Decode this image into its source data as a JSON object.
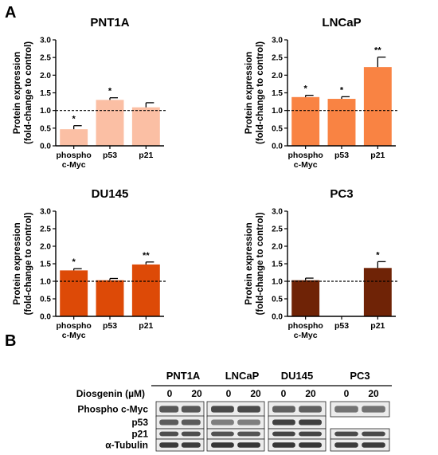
{
  "panels": {
    "a": "A",
    "b": "B"
  },
  "chart_data": [
    {
      "type": "bar",
      "title": "PNT1A",
      "ylabel_lines": [
        "Protein expression",
        "(fold-change to control)"
      ],
      "categories": [
        [
          "phospho",
          "c-Myc"
        ],
        [
          "p53"
        ],
        [
          "p21"
        ]
      ],
      "values": [
        0.47,
        1.3,
        1.09
      ],
      "errors": [
        0.1,
        0.06,
        0.13
      ],
      "significance": [
        "*",
        "*",
        ""
      ],
      "ylim": [
        0,
        3.0
      ],
      "yticks": [
        "0.0",
        "0.5",
        "1.0",
        "1.5",
        "2.0",
        "2.5",
        "3.0"
      ],
      "reference_line": 1.0,
      "color": "#fbbfa4",
      "grid": false
    },
    {
      "type": "bar",
      "title": "LNCaP",
      "ylabel_lines": [
        "Protein expression",
        "(fold-change to control)"
      ],
      "categories": [
        [
          "phospho",
          "c-Myc"
        ],
        [
          "p53"
        ],
        [
          "p21"
        ]
      ],
      "values": [
        1.38,
        1.33,
        2.23
      ],
      "errors": [
        0.05,
        0.06,
        0.28
      ],
      "significance": [
        "*",
        "*",
        "**"
      ],
      "ylim": [
        0,
        3.0
      ],
      "yticks": [
        "0.0",
        "0.5",
        "1.0",
        "1.5",
        "2.0",
        "2.5",
        "3.0"
      ],
      "reference_line": 1.0,
      "color": "#f98343",
      "grid": false
    },
    {
      "type": "bar",
      "title": "DU145",
      "ylabel_lines": [
        "Protein expression",
        "(fold-change to control)"
      ],
      "categories": [
        [
          "phospho",
          "c-Myc"
        ],
        [
          "p53"
        ],
        [
          "p21"
        ]
      ],
      "values": [
        1.31,
        1.03,
        1.48
      ],
      "errors": [
        0.05,
        0.05,
        0.07
      ],
      "significance": [
        "*",
        "",
        "**"
      ],
      "ylim": [
        0,
        3.0
      ],
      "yticks": [
        "0.0",
        "0.5",
        "1.0",
        "1.5",
        "2.0",
        "2.5",
        "3.0"
      ],
      "reference_line": 1.0,
      "color": "#dd4a07",
      "grid": false
    },
    {
      "type": "bar",
      "title": "PC3",
      "ylabel_lines": [
        "Protein expression",
        "(fold-change to control)"
      ],
      "categories": [
        [
          "phospho",
          "c-Myc"
        ],
        [
          "p53"
        ],
        [
          "p21"
        ]
      ],
      "values": [
        1.03,
        null,
        1.38
      ],
      "errors": [
        0.06,
        null,
        0.18
      ],
      "significance": [
        "",
        "",
        "*"
      ],
      "ylim": [
        0,
        3.0
      ],
      "yticks": [
        "0.0",
        "0.5",
        "1.0",
        "1.5",
        "2.0",
        "2.5",
        "3.0"
      ],
      "reference_line": 1.0,
      "color": "#6f2306",
      "grid": false
    }
  ],
  "blot": {
    "treatment_label": "Diosgenin (µM)",
    "cell_lines": [
      "PNT1A",
      "LNCaP",
      "DU145",
      "PC3"
    ],
    "lanes": [
      "0",
      "20"
    ],
    "rows": [
      "Phospho c-Myc",
      "p53",
      "p21",
      "α-Tubulin"
    ]
  }
}
